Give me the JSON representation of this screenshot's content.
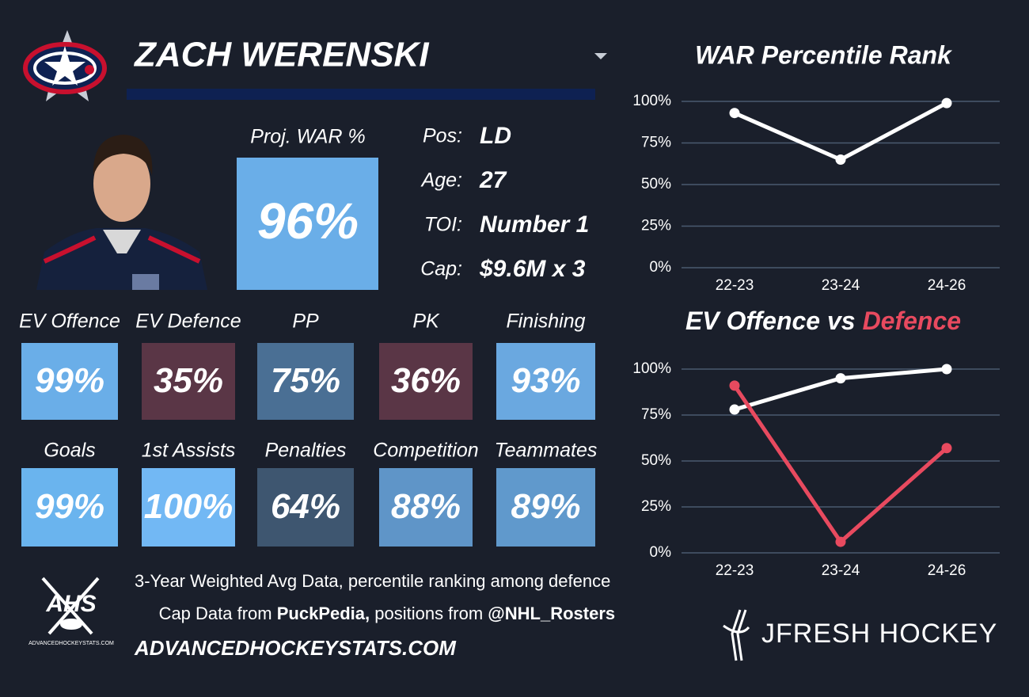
{
  "header": {
    "name": "ZACH WERENSKI"
  },
  "projection": {
    "label": "Proj. WAR %",
    "value": "96%",
    "color": "#6aaee8"
  },
  "info": [
    {
      "label": "Pos:",
      "value": "LD"
    },
    {
      "label": "Age:",
      "value": "27"
    },
    {
      "label": "TOI:",
      "value": "Number 1"
    },
    {
      "label": "Cap:",
      "value": "$9.6M x 3"
    }
  ],
  "tiles": [
    [
      {
        "label": "EV Offence",
        "value": "99%",
        "color": "#6aaee8"
      },
      {
        "label": "EV Defence",
        "value": "35%",
        "color": "#5a3646"
      },
      {
        "label": "PP",
        "value": "75%",
        "color": "#4a6f94"
      },
      {
        "label": "PK",
        "value": "36%",
        "color": "#5a3646"
      },
      {
        "label": "Finishing",
        "value": "93%",
        "color": "#6aa8e0"
      }
    ],
    [
      {
        "label": "Goals",
        "value": "99%",
        "color": "#6ab4ee"
      },
      {
        "label": "1st Assists",
        "value": "100%",
        "color": "#72b8f4"
      },
      {
        "label": "Penalties",
        "value": "64%",
        "color": "#3e5670"
      },
      {
        "label": "Competition",
        "value": "88%",
        "color": "#5f95c8"
      },
      {
        "label": "Teammates",
        "value": "89%",
        "color": "#6099cc"
      }
    ]
  ],
  "footer": {
    "note": "3-Year Weighted Avg Data, percentile ranking among defence",
    "credits": [
      "Cap Data from ",
      "PuckPedia,",
      " positions from ",
      "@NHL_Rosters"
    ],
    "website": "ADVANCEDHOCKEYSTATS.COM",
    "brand": "JFRESH HOCKEY",
    "logo_text": "AHS",
    "logo_caption": "ADVANCEDHOCKEYSTATS.COM"
  },
  "chart_data": [
    {
      "type": "line",
      "title": "WAR Percentile Rank",
      "categories": [
        "22-23",
        "23-24",
        "24-26"
      ],
      "series": [
        {
          "color": "#ffffff",
          "values": [
            93,
            65,
            99
          ]
        }
      ],
      "ylim": [
        0,
        100
      ],
      "yticks": [
        {
          "value": 0,
          "label": "0%"
        },
        {
          "value": 25,
          "label": "25%"
        },
        {
          "value": 50,
          "label": "50%"
        },
        {
          "value": 75,
          "label": "75%"
        },
        {
          "value": 100,
          "label": "100%"
        }
      ],
      "grid": true
    },
    {
      "type": "line",
      "title_parts": [
        {
          "text": "EV Offence vs",
          "color": "#ffffff"
        },
        {
          "text": "Defence",
          "color": "#e84a5f"
        }
      ],
      "categories": [
        "22-23",
        "23-24",
        "24-26"
      ],
      "series": [
        {
          "color": "#ffffff",
          "values": [
            78,
            95,
            100
          ]
        },
        {
          "color": "#e84a5f",
          "values": [
            91,
            6,
            57
          ]
        }
      ],
      "ylim": [
        0,
        100
      ],
      "yticks": [
        {
          "value": 0,
          "label": "0%"
        },
        {
          "value": 25,
          "label": "25%"
        },
        {
          "value": 50,
          "label": "50%"
        },
        {
          "value": 75,
          "label": "75%"
        },
        {
          "value": 100,
          "label": "100%"
        }
      ],
      "grid": true
    }
  ]
}
